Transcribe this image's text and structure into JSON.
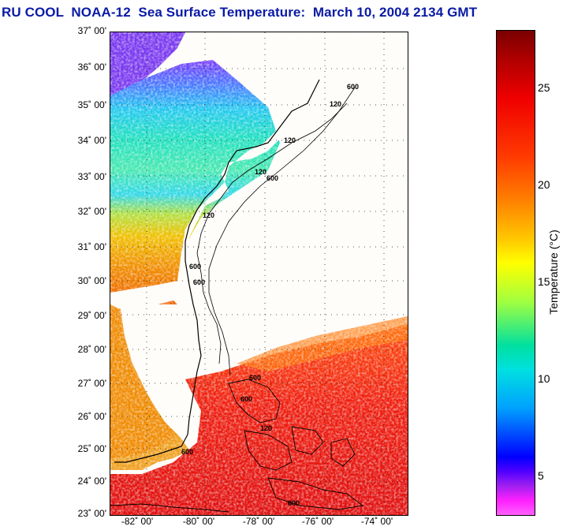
{
  "title": "RU COOL  NOAA-12  Sea Surface Temperature:  March 10, 2004 2134 GMT",
  "map": {
    "lat_labels": [
      "37˚ 00'",
      "36˚ 00'",
      "35˚ 00'",
      "34˚ 00'",
      "33˚ 00'",
      "32˚ 00'",
      "31˚ 00'",
      "30˚ 00'",
      "29˚ 00'",
      "28˚ 00'",
      "27˚ 00'",
      "26˚ 00'",
      "25˚ 00'",
      "24˚ 00'",
      "23˚ 00'"
    ],
    "lon_labels": [
      "-82˚ 00'",
      "-80˚ 00'",
      "-78˚ 00'",
      "-76˚ 00'",
      "-74˚ 00'"
    ],
    "contour_labels": [
      "600",
      "120",
      "120",
      "600",
      "120",
      "120",
      "600",
      "600",
      "600",
      "600",
      "120",
      "600",
      "600"
    ]
  },
  "colorbar": {
    "ticks": [
      "25",
      "20",
      "15",
      "10",
      "5"
    ],
    "label": "Temperature (°C)",
    "range": [
      3,
      28
    ]
  }
}
